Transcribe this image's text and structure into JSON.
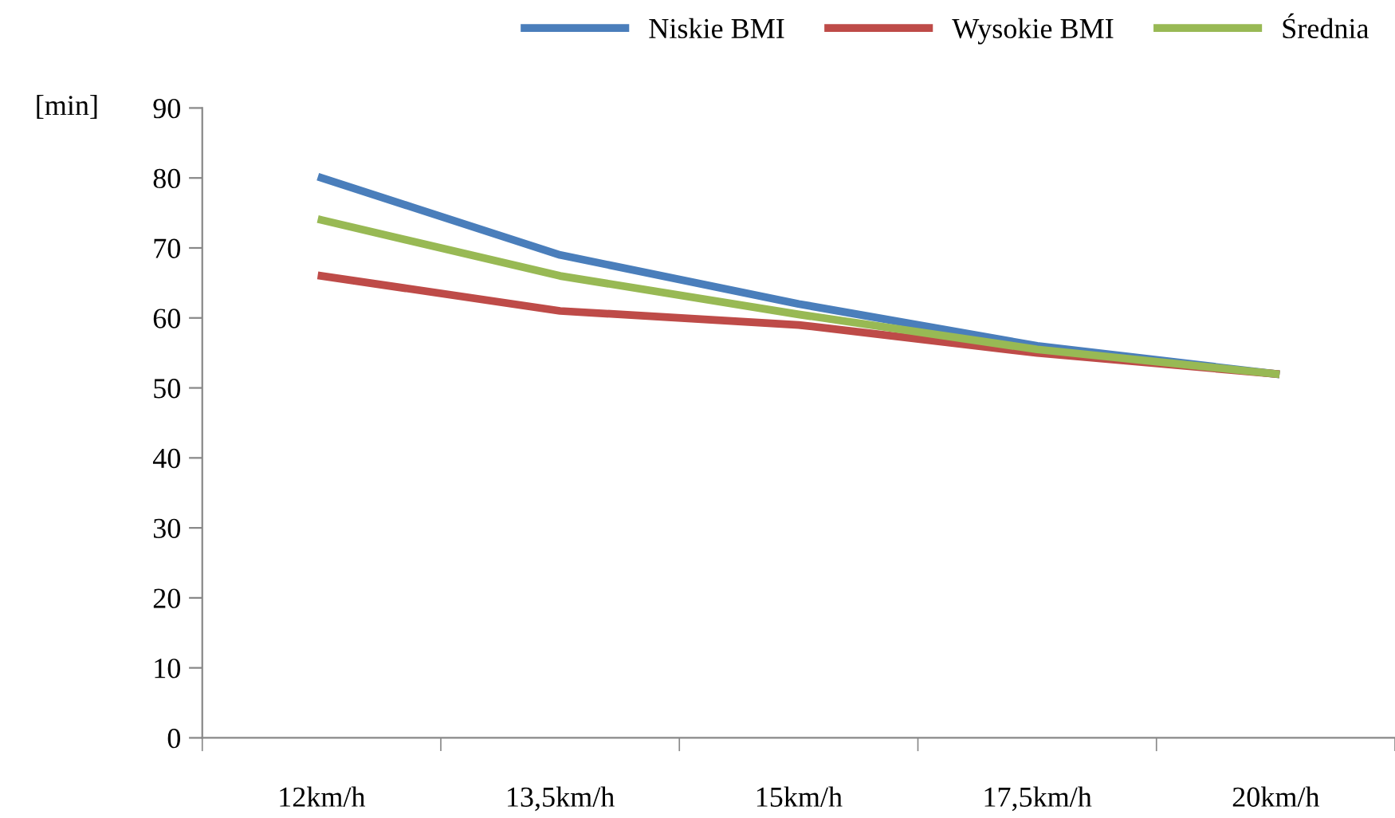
{
  "chart_data": {
    "type": "line",
    "ylabel": "[min]",
    "categories": [
      "12km/h",
      "13,5km/h",
      "15km/h",
      "17,5km/h",
      "20km/h"
    ],
    "series": [
      {
        "name": "Niskie BMI",
        "color": "#4a7ebb",
        "values": [
          80,
          69,
          62,
          56,
          52
        ]
      },
      {
        "name": "Wysokie BMI",
        "color": "#be4b48",
        "values": [
          66,
          61,
          59,
          55,
          52
        ]
      },
      {
        "name": "Średnia",
        "color": "#98b954",
        "values": [
          74,
          66,
          60.5,
          55.5,
          52
        ]
      }
    ],
    "ylim": [
      0,
      90
    ],
    "yticks": [
      0,
      10,
      20,
      30,
      40,
      50,
      60,
      70,
      80,
      90
    ],
    "grid": false,
    "legend": "top right",
    "marker": "none",
    "line_style": "solid"
  }
}
